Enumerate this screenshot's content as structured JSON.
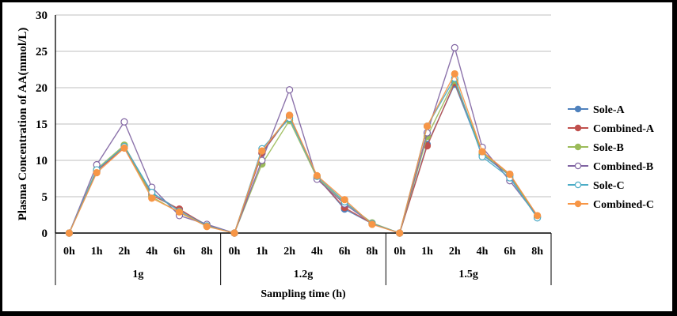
{
  "chart_data": {
    "type": "line",
    "title": "",
    "xlabel": "Sampling time (h)",
    "ylabel": "Plasma Concentration of AA(mmol/L)",
    "ylim": [
      0,
      30
    ],
    "yticks": [
      0,
      5,
      10,
      15,
      20,
      25,
      30
    ],
    "grid": true,
    "legend_position": "right",
    "groups": [
      {
        "label": "1g",
        "categories": [
          "0h",
          "1h",
          "2h",
          "4h",
          "6h",
          "8h"
        ]
      },
      {
        "label": "1.2g",
        "categories": [
          "0h",
          "1h",
          "2h",
          "4h",
          "6h",
          "8h"
        ]
      },
      {
        "label": "1.5g",
        "categories": [
          "0h",
          "1h",
          "2h",
          "4h",
          "6h",
          "8h"
        ]
      }
    ],
    "series": [
      {
        "name": "Sole-A",
        "color": "#4f81bd",
        "marker": "filled",
        "values": [
          0,
          8.5,
          12.0,
          5.5,
          3.2,
          1.1,
          0,
          11.0,
          16.1,
          7.7,
          3.3,
          1.3,
          0,
          12.2,
          20.5,
          10.8,
          7.9,
          2.1
        ]
      },
      {
        "name": "Combined-A",
        "color": "#c0504d",
        "marker": "filled",
        "values": [
          0,
          8.6,
          11.7,
          5.2,
          3.3,
          1.0,
          0,
          11.0,
          16.2,
          7.6,
          3.5,
          1.3,
          0,
          12.0,
          20.7,
          11.2,
          8.1,
          2.3
        ]
      },
      {
        "name": "Sole-B",
        "color": "#9bbb59",
        "marker": "filled",
        "values": [
          0,
          8.8,
          12.1,
          5.0,
          2.8,
          1.0,
          0,
          9.5,
          15.5,
          7.6,
          4.2,
          1.4,
          0,
          13.3,
          21.0,
          11.0,
          8.0,
          2.2
        ]
      },
      {
        "name": "Combined-B",
        "color": "#8064a2",
        "marker": "hollow",
        "values": [
          0,
          9.4,
          15.3,
          6.3,
          2.4,
          1.2,
          0,
          10.0,
          19.7,
          7.4,
          4.0,
          1.3,
          0,
          13.8,
          25.5,
          11.8,
          7.2,
          2.3
        ]
      },
      {
        "name": "Sole-C",
        "color": "#4bacc6",
        "marker": "hollow",
        "values": [
          0,
          8.7,
          11.9,
          5.6,
          3.0,
          1.0,
          0,
          11.6,
          15.8,
          7.8,
          4.3,
          1.3,
          0,
          14.7,
          21.3,
          10.5,
          7.6,
          2.1
        ]
      },
      {
        "name": "Combined-C",
        "color": "#f79646",
        "marker": "filled",
        "values": [
          0,
          8.3,
          11.7,
          4.8,
          2.9,
          0.9,
          0,
          11.3,
          16.2,
          7.9,
          4.6,
          1.2,
          0,
          14.7,
          21.9,
          11.2,
          8.1,
          2.4
        ]
      }
    ]
  }
}
